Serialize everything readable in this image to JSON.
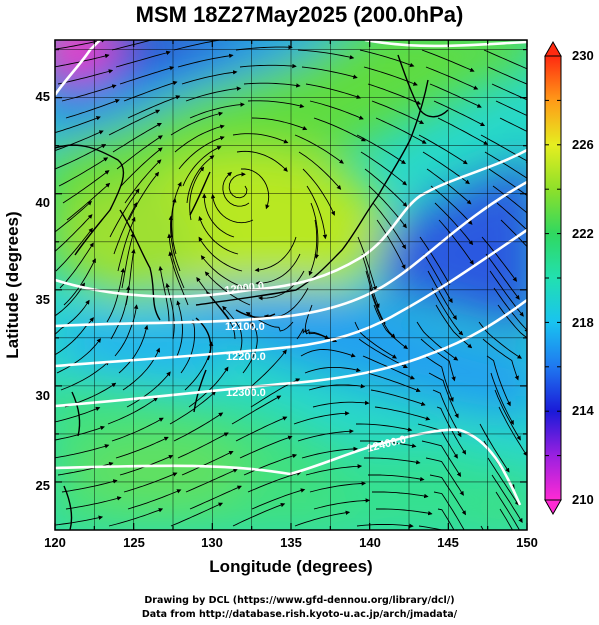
{
  "title": "MSM 18Z27May2025 (200.0hPa)",
  "map": {
    "xlabel": "Longitude (degrees)",
    "ylabel": "Latitude  (degrees)",
    "lon_range": [
      120,
      150
    ],
    "lat_range": [
      22.5,
      48
    ],
    "x_ticks": [
      "120",
      "125",
      "130",
      "135",
      "140",
      "145",
      "150"
    ],
    "y_ticks": [
      "25",
      "30",
      "35",
      "40",
      "45"
    ],
    "grid": true,
    "field": "temperature (shaded), streamlines, geopotential height contours",
    "contour_labels": [
      "12000.0",
      "12100.0",
      "12200.0",
      "12300.0",
      "12400.0"
    ]
  },
  "colorbar": {
    "ticks": [
      "210",
      "214",
      "218",
      "222",
      "226",
      "230"
    ],
    "min": 210,
    "max": 230
  },
  "credits": {
    "line1": "Drawing by DCL (https://www.gfd-dennou.org/library/dcl/)",
    "line2": "Data from http://database.rish.kyoto-u.ac.jp/arch/jmadata/"
  }
}
